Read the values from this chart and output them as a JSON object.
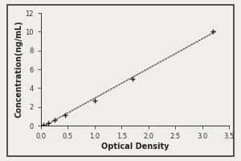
{
  "title": "",
  "xlabel": "Optical Density",
  "ylabel": "Concentration(ng/mL)",
  "xlim": [
    0,
    3.5
  ],
  "ylim": [
    0,
    12
  ],
  "xticks": [
    0,
    0.5,
    1,
    1.5,
    2,
    2.5,
    3,
    3.5
  ],
  "yticks": [
    0,
    2,
    4,
    6,
    8,
    10,
    12
  ],
  "data_points_x": [
    0.05,
    0.13,
    0.25,
    0.45,
    1.0,
    1.7,
    3.2
  ],
  "data_points_y": [
    0.05,
    0.3,
    0.6,
    1.1,
    2.7,
    5.0,
    10.0
  ],
  "line_color": "#888888",
  "line_color2": "#333333",
  "marker_color": "#222222",
  "background_color": "#f0eeea",
  "plot_bg_color": "#f0eeea",
  "border_color": "#333333",
  "font_size_label": 7,
  "font_size_tick": 6
}
